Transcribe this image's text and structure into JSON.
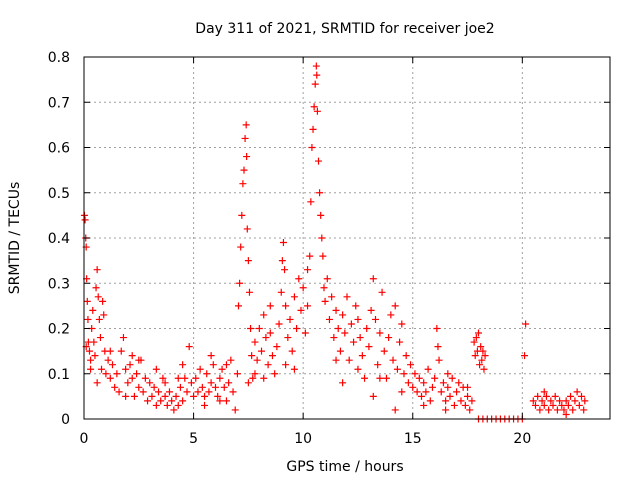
{
  "chart_data": {
    "type": "scatter",
    "title": "Day 311 of 2021, SRMTID for receiver joe2",
    "xlabel": "GPS time / hours",
    "ylabel": "SRMTID / TECUs",
    "xlim": [
      0,
      24
    ],
    "ylim": [
      0,
      0.8
    ],
    "xticks": [
      0,
      5,
      10,
      15,
      20
    ],
    "yticks": [
      0,
      0.1,
      0.2,
      0.3,
      0.4,
      0.5,
      0.6,
      0.7,
      0.8
    ],
    "xtick_labels": [
      "0",
      "5",
      "10",
      "15",
      "20"
    ],
    "ytick_labels": [
      "0",
      "0.1",
      "0.2",
      "0.3",
      "0.4",
      "0.5",
      "0.6",
      "0.7",
      "0.8"
    ],
    "grid": true,
    "marker": "+",
    "color": "#ff0000",
    "series": [
      {
        "name": "SRMTID",
        "points": [
          [
            0.02,
            0.45
          ],
          [
            0.05,
            0.44
          ],
          [
            0.08,
            0.4
          ],
          [
            0.1,
            0.38
          ],
          [
            0.12,
            0.31
          ],
          [
            0.15,
            0.26
          ],
          [
            0.18,
            0.22
          ],
          [
            0.2,
            0.17
          ],
          [
            0.25,
            0.15
          ],
          [
            0.3,
            0.13
          ],
          [
            0.35,
            0.2
          ],
          [
            0.4,
            0.24
          ],
          [
            0.45,
            0.17
          ],
          [
            0.5,
            0.14
          ],
          [
            0.55,
            0.29
          ],
          [
            0.6,
            0.33
          ],
          [
            0.65,
            0.27
          ],
          [
            0.7,
            0.22
          ],
          [
            0.75,
            0.18
          ],
          [
            0.8,
            0.11
          ],
          [
            0.85,
            0.26
          ],
          [
            0.9,
            0.23
          ],
          [
            0.95,
            0.15
          ],
          [
            1.0,
            0.1
          ],
          [
            1.1,
            0.13
          ],
          [
            1.2,
            0.09
          ],
          [
            1.3,
            0.12
          ],
          [
            1.4,
            0.07
          ],
          [
            1.5,
            0.1
          ],
          [
            1.6,
            0.06
          ],
          [
            1.7,
            0.15
          ],
          [
            1.8,
            0.18
          ],
          [
            1.9,
            0.11
          ],
          [
            2.0,
            0.08
          ],
          [
            2.1,
            0.12
          ],
          [
            2.2,
            0.09
          ],
          [
            2.3,
            0.05
          ],
          [
            2.4,
            0.1
          ],
          [
            2.5,
            0.07
          ],
          [
            2.6,
            0.13
          ],
          [
            2.7,
            0.06
          ],
          [
            2.8,
            0.09
          ],
          [
            2.9,
            0.04
          ],
          [
            3.0,
            0.08
          ],
          [
            3.1,
            0.05
          ],
          [
            3.2,
            0.07
          ],
          [
            3.3,
            0.11
          ],
          [
            3.4,
            0.06
          ],
          [
            3.5,
            0.04
          ],
          [
            3.6,
            0.09
          ],
          [
            3.7,
            0.05
          ],
          [
            3.8,
            0.03
          ],
          [
            3.9,
            0.06
          ],
          [
            4.0,
            0.04
          ],
          [
            4.1,
            0.02
          ],
          [
            4.2,
            0.05
          ],
          [
            4.3,
            0.03
          ],
          [
            4.4,
            0.07
          ],
          [
            4.5,
            0.04
          ],
          [
            4.6,
            0.09
          ],
          [
            4.7,
            0.06
          ],
          [
            4.8,
            0.16
          ],
          [
            4.9,
            0.08
          ],
          [
            5.0,
            0.05
          ],
          [
            5.1,
            0.09
          ],
          [
            5.2,
            0.06
          ],
          [
            5.3,
            0.11
          ],
          [
            5.4,
            0.07
          ],
          [
            5.5,
            0.05
          ],
          [
            5.6,
            0.1
          ],
          [
            5.7,
            0.06
          ],
          [
            5.8,
            0.08
          ],
          [
            5.9,
            0.12
          ],
          [
            6.0,
            0.07
          ],
          [
            6.1,
            0.05
          ],
          [
            6.2,
            0.09
          ],
          [
            6.3,
            0.11
          ],
          [
            6.4,
            0.07
          ],
          [
            6.5,
            0.04
          ],
          [
            6.6,
            0.08
          ],
          [
            6.7,
            0.13
          ],
          [
            6.8,
            0.06
          ],
          [
            6.9,
            0.02
          ],
          [
            7.0,
            0.1
          ],
          [
            7.05,
            0.25
          ],
          [
            7.1,
            0.3
          ],
          [
            7.15,
            0.38
          ],
          [
            7.2,
            0.45
          ],
          [
            7.25,
            0.52
          ],
          [
            7.3,
            0.55
          ],
          [
            7.35,
            0.62
          ],
          [
            7.4,
            0.65
          ],
          [
            7.42,
            0.58
          ],
          [
            7.45,
            0.42
          ],
          [
            7.5,
            0.35
          ],
          [
            7.55,
            0.28
          ],
          [
            7.6,
            0.2
          ],
          [
            7.65,
            0.14
          ],
          [
            7.7,
            0.09
          ],
          [
            7.8,
            0.17
          ],
          [
            7.9,
            0.13
          ],
          [
            8.0,
            0.2
          ],
          [
            8.1,
            0.15
          ],
          [
            8.2,
            0.23
          ],
          [
            8.3,
            0.18
          ],
          [
            8.4,
            0.12
          ],
          [
            8.5,
            0.19
          ],
          [
            8.6,
            0.14
          ],
          [
            8.7,
            0.1
          ],
          [
            8.8,
            0.16
          ],
          [
            8.9,
            0.21
          ],
          [
            9.0,
            0.28
          ],
          [
            9.05,
            0.35
          ],
          [
            9.1,
            0.39
          ],
          [
            9.15,
            0.33
          ],
          [
            9.2,
            0.25
          ],
          [
            9.3,
            0.18
          ],
          [
            9.4,
            0.22
          ],
          [
            9.5,
            0.15
          ],
          [
            9.6,
            0.27
          ],
          [
            9.7,
            0.2
          ],
          [
            9.8,
            0.31
          ],
          [
            9.9,
            0.24
          ],
          [
            10.0,
            0.29
          ],
          [
            10.1,
            0.19
          ],
          [
            10.2,
            0.33
          ],
          [
            10.3,
            0.36
          ],
          [
            10.35,
            0.48
          ],
          [
            10.4,
            0.6
          ],
          [
            10.45,
            0.64
          ],
          [
            10.5,
            0.69
          ],
          [
            10.55,
            0.74
          ],
          [
            10.6,
            0.78
          ],
          [
            10.62,
            0.76
          ],
          [
            10.65,
            0.68
          ],
          [
            10.7,
            0.57
          ],
          [
            10.75,
            0.5
          ],
          [
            10.8,
            0.45
          ],
          [
            10.85,
            0.4
          ],
          [
            10.9,
            0.36
          ],
          [
            10.95,
            0.29
          ],
          [
            11.0,
            0.26
          ],
          [
            11.1,
            0.31
          ],
          [
            11.2,
            0.22
          ],
          [
            11.3,
            0.27
          ],
          [
            11.4,
            0.18
          ],
          [
            11.5,
            0.24
          ],
          [
            11.6,
            0.2
          ],
          [
            11.7,
            0.15
          ],
          [
            11.8,
            0.23
          ],
          [
            11.9,
            0.19
          ],
          [
            12.0,
            0.27
          ],
          [
            12.1,
            0.13
          ],
          [
            12.2,
            0.21
          ],
          [
            12.3,
            0.17
          ],
          [
            12.4,
            0.25
          ],
          [
            12.5,
            0.11
          ],
          [
            12.6,
            0.18
          ],
          [
            12.7,
            0.14
          ],
          [
            12.8,
            0.09
          ],
          [
            12.9,
            0.2
          ],
          [
            13.0,
            0.16
          ],
          [
            13.1,
            0.24
          ],
          [
            13.2,
            0.31
          ],
          [
            13.3,
            0.22
          ],
          [
            13.4,
            0.12
          ],
          [
            13.5,
            0.19
          ],
          [
            13.6,
            0.28
          ],
          [
            13.7,
            0.15
          ],
          [
            13.8,
            0.09
          ],
          [
            13.9,
            0.18
          ],
          [
            14.0,
            0.23
          ],
          [
            14.1,
            0.13
          ],
          [
            14.2,
            0.25
          ],
          [
            14.3,
            0.11
          ],
          [
            14.4,
            0.17
          ],
          [
            14.5,
            0.21
          ],
          [
            14.6,
            0.1
          ],
          [
            14.7,
            0.14
          ],
          [
            14.8,
            0.08
          ],
          [
            14.9,
            0.12
          ],
          [
            15.0,
            0.07
          ],
          [
            15.1,
            0.1
          ],
          [
            15.2,
            0.06
          ],
          [
            15.3,
            0.09
          ],
          [
            15.4,
            0.05
          ],
          [
            15.5,
            0.08
          ],
          [
            15.6,
            0.06
          ],
          [
            15.7,
            0.11
          ],
          [
            15.8,
            0.04
          ],
          [
            15.9,
            0.07
          ],
          [
            16.0,
            0.09
          ],
          [
            16.1,
            0.2
          ],
          [
            16.15,
            0.16
          ],
          [
            16.2,
            0.13
          ],
          [
            16.3,
            0.06
          ],
          [
            16.4,
            0.08
          ],
          [
            16.5,
            0.04
          ],
          [
            16.6,
            0.07
          ],
          [
            16.7,
            0.05
          ],
          [
            16.8,
            0.09
          ],
          [
            16.9,
            0.03
          ],
          [
            17.0,
            0.06
          ],
          [
            17.1,
            0.08
          ],
          [
            17.2,
            0.04
          ],
          [
            17.3,
            0.07
          ],
          [
            17.4,
            0.03
          ],
          [
            17.5,
            0.05
          ],
          [
            17.6,
            0.02
          ],
          [
            17.7,
            0.04
          ],
          [
            17.8,
            0.17
          ],
          [
            17.85,
            0.14
          ],
          [
            17.9,
            0.18
          ],
          [
            17.95,
            0.15
          ],
          [
            18.0,
            0.19
          ],
          [
            18.05,
            0.12
          ],
          [
            18.1,
            0.16
          ],
          [
            18.15,
            0.13
          ],
          [
            18.2,
            0.15
          ],
          [
            18.25,
            0.11
          ],
          [
            18.3,
            0.14
          ],
          [
            18.0,
            0.0
          ],
          [
            18.2,
            0.0
          ],
          [
            18.4,
            0.0
          ],
          [
            18.6,
            0.0
          ],
          [
            18.8,
            0.0
          ],
          [
            19.0,
            0.0
          ],
          [
            19.2,
            0.0
          ],
          [
            19.4,
            0.0
          ],
          [
            19.6,
            0.0
          ],
          [
            19.8,
            0.0
          ],
          [
            20.0,
            0.0
          ],
          [
            20.1,
            0.14
          ],
          [
            20.15,
            0.21
          ],
          [
            20.5,
            0.04
          ],
          [
            20.6,
            0.03
          ],
          [
            20.7,
            0.05
          ],
          [
            20.8,
            0.02
          ],
          [
            20.9,
            0.04
          ],
          [
            21.0,
            0.03
          ],
          [
            21.1,
            0.05
          ],
          [
            21.2,
            0.02
          ],
          [
            21.3,
            0.04
          ],
          [
            21.4,
            0.03
          ],
          [
            21.5,
            0.05
          ],
          [
            21.6,
            0.02
          ],
          [
            21.7,
            0.04
          ],
          [
            21.8,
            0.03
          ],
          [
            21.9,
            0.02
          ],
          [
            22.0,
            0.04
          ],
          [
            22.1,
            0.03
          ],
          [
            22.2,
            0.05
          ],
          [
            22.3,
            0.02
          ],
          [
            22.4,
            0.04
          ],
          [
            22.5,
            0.06
          ],
          [
            22.6,
            0.03
          ],
          [
            22.7,
            0.05
          ],
          [
            22.8,
            0.02
          ],
          [
            22.85,
            0.04
          ],
          [
            0.1,
            0.16
          ],
          [
            0.3,
            0.11
          ],
          [
            0.6,
            0.08
          ],
          [
            1.2,
            0.15
          ],
          [
            1.9,
            0.05
          ],
          [
            2.5,
            0.13
          ],
          [
            3.3,
            0.03
          ],
          [
            4.3,
            0.09
          ],
          [
            5.5,
            0.03
          ],
          [
            6.5,
            0.12
          ],
          [
            7.8,
            0.1
          ],
          [
            8.5,
            0.25
          ],
          [
            9.6,
            0.11
          ],
          [
            10.2,
            0.25
          ],
          [
            11.5,
            0.13
          ],
          [
            12.5,
            0.22
          ],
          [
            13.5,
            0.09
          ],
          [
            14.5,
            0.06
          ],
          [
            15.5,
            0.03
          ],
          [
            16.5,
            0.02
          ],
          [
            17.5,
            0.07
          ],
          [
            21.0,
            0.06
          ],
          [
            22.0,
            0.01
          ],
          [
            2.2,
            0.14
          ],
          [
            3.7,
            0.08
          ],
          [
            6.2,
            0.04
          ],
          [
            9.2,
            0.12
          ],
          [
            11.8,
            0.08
          ],
          [
            13.2,
            0.05
          ],
          [
            14.2,
            0.02
          ],
          [
            16.6,
            0.1
          ],
          [
            4.5,
            0.12
          ],
          [
            5.8,
            0.14
          ],
          [
            7.5,
            0.08
          ],
          [
            8.2,
            0.09
          ]
        ]
      }
    ]
  }
}
